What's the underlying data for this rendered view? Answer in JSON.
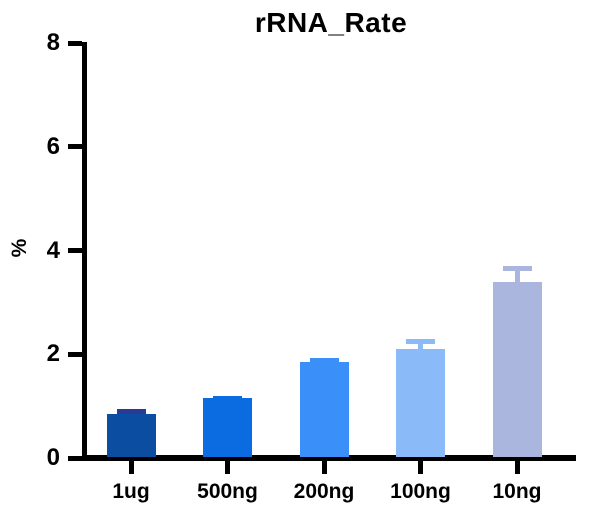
{
  "chart_data": {
    "type": "bar",
    "title": "rRNA_Rate",
    "xlabel": "",
    "ylabel": "%",
    "categories": [
      "1ug",
      "500ng",
      "200ng",
      "100ng",
      "10ng"
    ],
    "values": [
      0.85,
      1.15,
      1.85,
      2.1,
      3.4
    ],
    "errors": [
      0.1,
      0.05,
      0.08,
      0.2,
      0.3
    ],
    "bar_colors": [
      "#0b4da1",
      "#0a6ce0",
      "#3a90f8",
      "#8abaf8",
      "#aab6dd"
    ],
    "error_colors": [
      "#2a3b94",
      "#0a6ce0",
      "#3a90f8",
      "#8abaf8",
      "#aab6dd"
    ],
    "ylim": [
      0,
      8
    ],
    "yticks": [
      0,
      2,
      4,
      6,
      8
    ],
    "grid": false,
    "legend": null,
    "axis_color": "#000000",
    "background": "#ffffff"
  }
}
